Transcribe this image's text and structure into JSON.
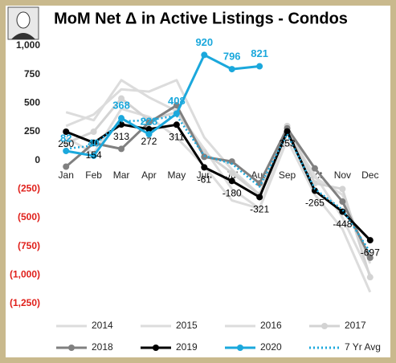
{
  "chart_data": {
    "type": "line",
    "title": "MoM Net Δ in Active Listings - Condos",
    "categories": [
      "Jan",
      "Feb",
      "Mar",
      "Apr",
      "May",
      "Jun",
      "Jul",
      "Aug",
      "Sep",
      "Oct",
      "Nov",
      "Dec"
    ],
    "ylim": [
      -1250,
      1000
    ],
    "yticks": [
      {
        "value": 1000,
        "label": "1,000"
      },
      750,
      500,
      250,
      0,
      {
        "value": -250,
        "label": "(250)"
      },
      {
        "value": -500,
        "label": "(500)"
      },
      {
        "value": -750,
        "label": "(750)"
      },
      {
        "value": -1000,
        "label": "(1,000)"
      },
      {
        "value": -1250,
        "label": "(1,250)"
      }
    ],
    "grid": false,
    "series": [
      {
        "name": "2014",
        "color": "#dcdcdc",
        "markers": false,
        "dashed": false,
        "labels": false,
        "values": [
          420,
          350,
          700,
          550,
          430,
          100,
          -250,
          -420,
          180,
          -300,
          -600,
          -1150
        ]
      },
      {
        "name": "2015",
        "color": "#dcdcdc",
        "markers": false,
        "dashed": false,
        "labels": false,
        "values": [
          300,
          400,
          620,
          600,
          700,
          200,
          -80,
          -300,
          280,
          -150,
          -300,
          -900
        ]
      },
      {
        "name": "2016",
        "color": "#dcdcdc",
        "markers": false,
        "dashed": false,
        "labels": false,
        "values": [
          200,
          60,
          450,
          380,
          200,
          -50,
          -350,
          -420,
          240,
          -130,
          -500,
          -1000
        ]
      },
      {
        "name": "2017",
        "color": "#d3d3d3",
        "markers": true,
        "dashed": false,
        "labels": false,
        "values": [
          150,
          250,
          540,
          350,
          420,
          70,
          -110,
          -300,
          300,
          -200,
          -250,
          -1020
        ]
      },
      {
        "name": "2018",
        "color": "#808080",
        "markers": true,
        "dashed": false,
        "labels": false,
        "values": [
          -55,
          150,
          100,
          330,
          480,
          30,
          -10,
          -200,
          280,
          -70,
          -360,
          -850
        ]
      },
      {
        "name": "2019",
        "color": "#000000",
        "markers": true,
        "dashed": false,
        "labels": true,
        "values": [
          250,
          154,
          313,
          272,
          311,
          -61,
          -180,
          -321,
          253,
          -265,
          -448,
          -697
        ]
      },
      {
        "name": "2020",
        "color": "#1ba8dc",
        "markers": true,
        "dashed": false,
        "labels": true,
        "values": [
          82,
          40,
          368,
          228,
          408,
          920,
          796,
          821,
          null,
          null,
          null,
          null
        ]
      },
      {
        "name": "7 Yr Avg",
        "color": "#1ba8dc",
        "markers": false,
        "dashed": true,
        "labels": false,
        "values": [
          100,
          130,
          340,
          350,
          390,
          40,
          -30,
          -230,
          230,
          -250,
          -430,
          -800
        ]
      }
    ]
  }
}
